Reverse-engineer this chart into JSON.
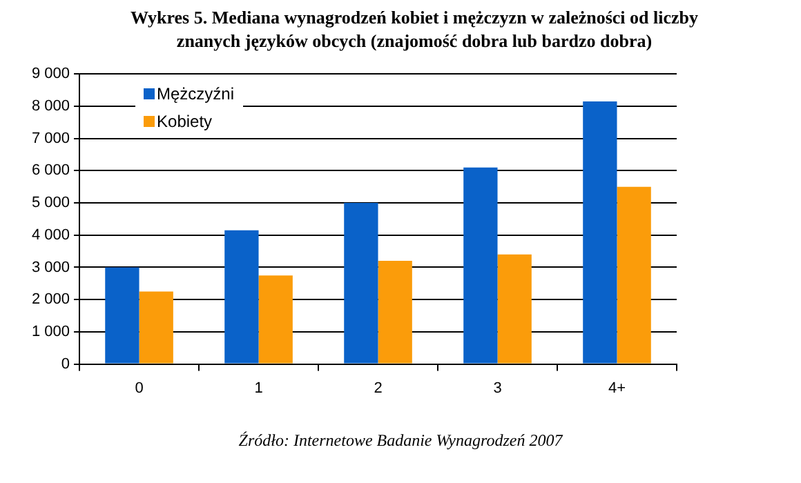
{
  "chart_data": {
    "type": "bar",
    "title": "Wykres 5. Mediana wynagrodzeń kobiet i mężczyzn w zależności od liczby znanych języków obcych (znajomość dobra lub bardzo dobra)",
    "categories": [
      "0",
      "1",
      "2",
      "3",
      "4+"
    ],
    "series": [
      {
        "name": "Mężczyźni",
        "color": "#0a62c9",
        "values": [
          3000,
          4150,
          5000,
          6100,
          8150
        ]
      },
      {
        "name": "Kobiety",
        "color": "#fb9c0a",
        "values": [
          2250,
          2750,
          3200,
          3400,
          5500
        ]
      }
    ],
    "ylim": [
      0,
      9000
    ],
    "yticks": [
      0,
      {
        "value": 1000,
        "label": "1 000"
      },
      {
        "value": 2000,
        "label": "2 000"
      },
      {
        "value": 3000,
        "label": "3 000"
      },
      {
        "value": 4000,
        "label": "4 000"
      },
      {
        "value": 5000,
        "label": "5 000"
      },
      {
        "value": 6000,
        "label": "6 000"
      },
      {
        "value": 7000,
        "label": "7 000"
      },
      {
        "value": 8000,
        "label": "8 000"
      },
      {
        "value": 9000,
        "label": "9 000"
      }
    ],
    "grid": "y",
    "legend": "top left",
    "annotations": [
      "Źródło: Internetowe Badanie Wynagrodzeń 2007"
    ]
  }
}
